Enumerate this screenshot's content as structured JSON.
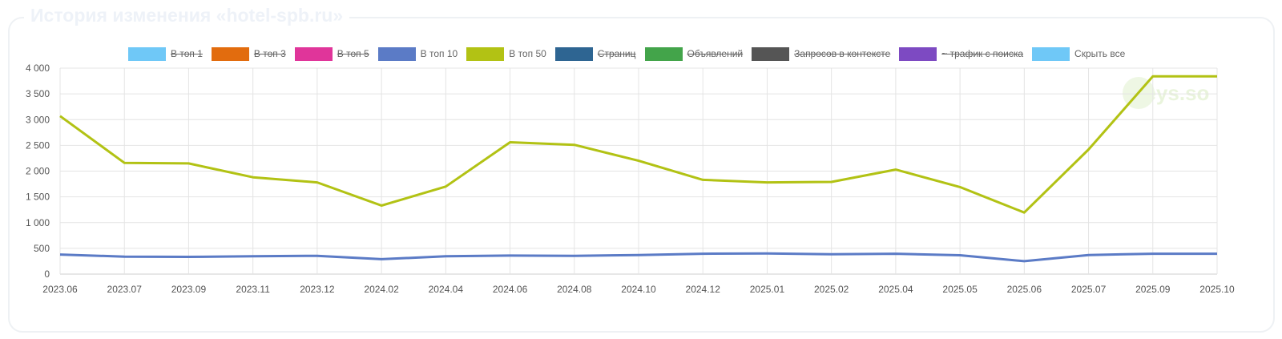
{
  "panel": {
    "title": "История изменения «hotel-spb.ru»"
  },
  "watermark": "keys.so",
  "legend": [
    {
      "label": "В топ 1",
      "color": "#6fc8f7",
      "enabled": false
    },
    {
      "label": "В топ 3",
      "color": "#e26c0e",
      "enabled": false
    },
    {
      "label": "В топ 5",
      "color": "#e0359a",
      "enabled": false
    },
    {
      "label": "В топ 10",
      "color": "#5b7bc6",
      "enabled": true
    },
    {
      "label": "В топ 50",
      "color": "#b2c214",
      "enabled": true
    },
    {
      "label": "Страниц",
      "color": "#2e6592",
      "enabled": false
    },
    {
      "label": "Объявлений",
      "color": "#43a44a",
      "enabled": false
    },
    {
      "label": "Запросов в контексте",
      "color": "#555555",
      "enabled": false
    },
    {
      "label": "~ трафик с поиска",
      "color": "#7d4ac2",
      "enabled": false
    },
    {
      "label": "Скрыть все",
      "color": "#6fc8f7",
      "enabled": true
    }
  ],
  "chart_data": {
    "type": "line",
    "categories": [
      "2023.06",
      "2023.07",
      "2023.09",
      "2023.11",
      "2023.12",
      "2024.02",
      "2024.04",
      "2024.06",
      "2024.08",
      "2024.10",
      "2024.12",
      "2025.01",
      "2025.02",
      "2025.04",
      "2025.05",
      "2025.06",
      "2025.07",
      "2025.09",
      "2025.10"
    ],
    "y_ticks": [
      "0",
      "500",
      "1 000",
      "1 500",
      "2 000",
      "2 500",
      "3 000",
      "3 500",
      "4 000"
    ],
    "ylim": [
      0,
      4000
    ],
    "grid": true,
    "legend_position": "top",
    "series": [
      {
        "name": "В топ 10",
        "color": "#5b7bc6",
        "values": [
          380,
          340,
          335,
          345,
          355,
          290,
          345,
          360,
          355,
          370,
          395,
          400,
          385,
          395,
          365,
          250,
          370,
          395,
          395
        ]
      },
      {
        "name": "В топ 50",
        "color": "#b2c214",
        "values": [
          3070,
          2160,
          2150,
          1880,
          1780,
          1330,
          1700,
          2560,
          2510,
          2200,
          1830,
          1780,
          1790,
          2030,
          1690,
          1195,
          2420,
          3840,
          3840
        ]
      }
    ]
  }
}
